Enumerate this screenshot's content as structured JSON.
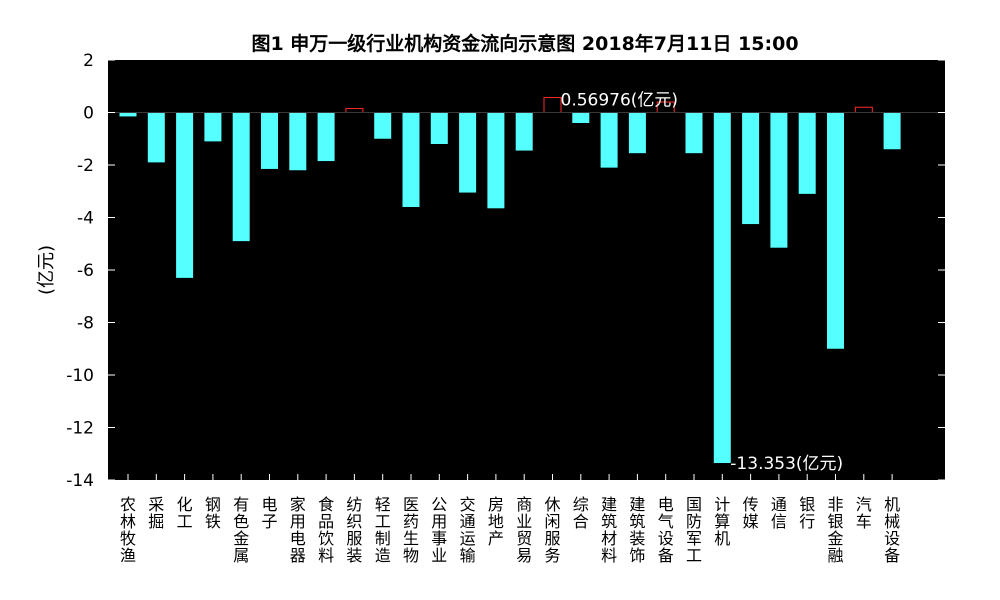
{
  "chart_data": {
    "type": "bar",
    "title": "图1 申万一级行业机构资金流向示意图 2018年7月11日 15:00",
    "xlabel": "",
    "ylabel": "(亿元)",
    "ylim": [
      -14,
      2
    ],
    "yticks": [
      "2",
      "0",
      "-2",
      "-4",
      "-6",
      "-8",
      "-10",
      "-12",
      "-14"
    ],
    "grid": false,
    "background": "#000000",
    "colors": {
      "negative": "#55ffff",
      "positive_edge": "#ff2a2a"
    },
    "categories": [
      "农林牧渔",
      "采掘",
      "化工",
      "钢铁",
      "有色金属",
      "电子",
      "家用电器",
      "食品饮料",
      "纺织服装",
      "轻工制造",
      "医药生物",
      "公用事业",
      "交通运输",
      "房地产",
      "商业贸易",
      "休闲服务",
      "综合",
      "建筑材料",
      "建筑装饰",
      "电气设备",
      "国防军工",
      "计算机",
      "传媒",
      "通信",
      "银行",
      "非银金融",
      "汽车",
      "机械设备"
    ],
    "values": [
      -0.15,
      -1.9,
      -6.3,
      -1.1,
      -4.9,
      -2.15,
      -2.2,
      -1.85,
      0.15,
      -1.0,
      -3.6,
      -1.2,
      -3.05,
      -3.65,
      -1.45,
      0.56976,
      -0.4,
      -2.1,
      -1.55,
      0.4,
      -1.55,
      -13.353,
      -4.25,
      -5.15,
      -3.1,
      -9.0,
      0.2,
      -1.4
    ],
    "annotations": [
      {
        "category": "休闲服务",
        "text": "0.56976(亿元)"
      },
      {
        "category": "计算机",
        "text": "-13.353(亿元)"
      }
    ]
  }
}
